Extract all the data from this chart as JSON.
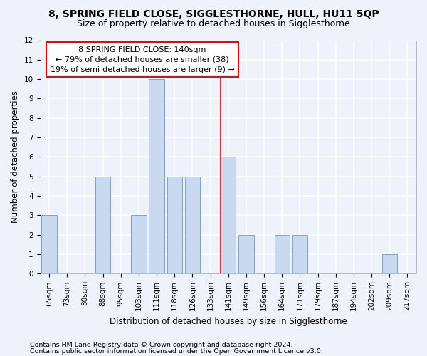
{
  "title": "8, SPRING FIELD CLOSE, SIGGLESTHORNE, HULL, HU11 5QP",
  "subtitle": "Size of property relative to detached houses in Sigglesthorne",
  "xlabel": "Distribution of detached houses by size in Sigglesthorne",
  "ylabel": "Number of detached properties",
  "categories": [
    "65sqm",
    "73sqm",
    "80sqm",
    "88sqm",
    "95sqm",
    "103sqm",
    "111sqm",
    "118sqm",
    "126sqm",
    "133sqm",
    "141sqm",
    "149sqm",
    "156sqm",
    "164sqm",
    "171sqm",
    "179sqm",
    "187sqm",
    "194sqm",
    "202sqm",
    "209sqm",
    "217sqm"
  ],
  "values": [
    3,
    0,
    0,
    5,
    0,
    3,
    10,
    5,
    5,
    0,
    6,
    2,
    0,
    2,
    2,
    0,
    0,
    0,
    0,
    1,
    0
  ],
  "bar_color": "#c9d9ef",
  "bar_edge_color": "#7096c8",
  "vline_index": 10,
  "ylim": [
    0,
    12
  ],
  "yticks": [
    0,
    1,
    2,
    3,
    4,
    5,
    6,
    7,
    8,
    9,
    10,
    11,
    12
  ],
  "annotation_line1": "8 SPRING FIELD CLOSE: 140sqm",
  "annotation_line2": "← 79% of detached houses are smaller (38)",
  "annotation_line3": "19% of semi-detached houses are larger (9) →",
  "footnote1": "Contains HM Land Registry data © Crown copyright and database right 2024.",
  "footnote2": "Contains public sector information licensed under the Open Government Licence v3.0.",
  "bg_color": "#eef2fb",
  "plot_bg_color": "#eef2fb",
  "grid_color": "#ffffff",
  "title_fontsize": 10,
  "subtitle_fontsize": 9,
  "axis_label_fontsize": 8.5,
  "tick_fontsize": 7.5,
  "annotation_fontsize": 8,
  "footnote_fontsize": 6.8
}
